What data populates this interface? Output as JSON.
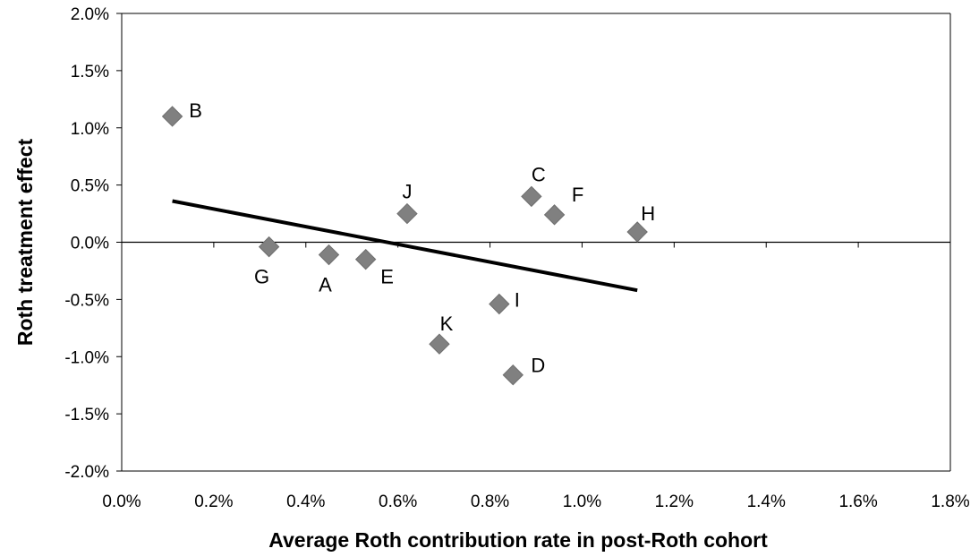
{
  "chart_data": {
    "type": "scatter",
    "title": "",
    "xlabel": "Average Roth contribution rate in post-Roth cohort",
    "ylabel": "Roth treatment effect",
    "xlim": [
      0.0,
      1.8
    ],
    "ylim": [
      -2.0,
      2.0
    ],
    "x_ticks": [
      "0.0%",
      "0.2%",
      "0.4%",
      "0.6%",
      "0.8%",
      "1.0%",
      "1.2%",
      "1.4%",
      "1.6%",
      "1.8%"
    ],
    "y_ticks": [
      "2.0%",
      "1.5%",
      "1.0%",
      "0.5%",
      "0.0%",
      "-0.5%",
      "-1.0%",
      "-1.5%",
      "-2.0%"
    ],
    "grid": false,
    "points": [
      {
        "label": "B",
        "x": 0.11,
        "y": 1.1
      },
      {
        "label": "G",
        "x": 0.32,
        "y": -0.04
      },
      {
        "label": "A",
        "x": 0.45,
        "y": -0.11
      },
      {
        "label": "E",
        "x": 0.53,
        "y": -0.15
      },
      {
        "label": "J",
        "x": 0.62,
        "y": 0.25
      },
      {
        "label": "K",
        "x": 0.69,
        "y": -0.89
      },
      {
        "label": "I",
        "x": 0.82,
        "y": -0.54
      },
      {
        "label": "D",
        "x": 0.85,
        "y": -1.16
      },
      {
        "label": "C",
        "x": 0.89,
        "y": 0.4
      },
      {
        "label": "F",
        "x": 0.94,
        "y": 0.24
      },
      {
        "label": "H",
        "x": 1.12,
        "y": 0.09
      }
    ],
    "trendline": {
      "x": [
        0.11,
        1.12
      ],
      "y": [
        0.36,
        -0.42
      ]
    },
    "colors": {
      "marker": "#808080",
      "trendline": "#000000",
      "axis": "#000000"
    }
  }
}
